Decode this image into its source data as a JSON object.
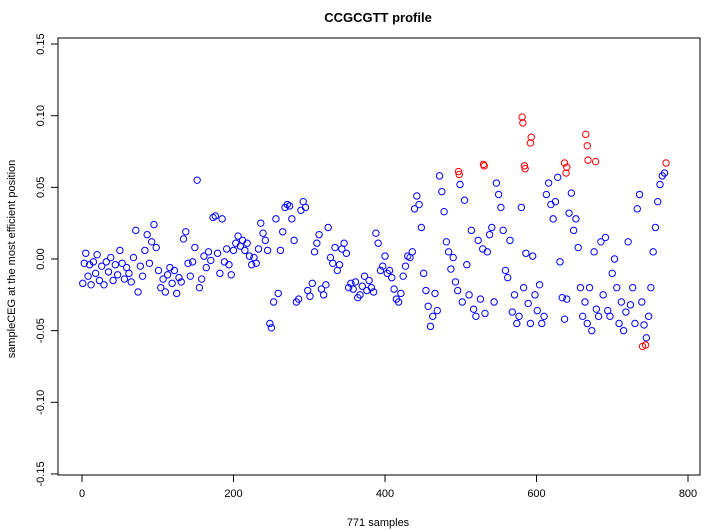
{
  "chart_data": {
    "type": "scatter",
    "title": "CCGCGTT profile",
    "xlabel": "771 samples",
    "ylabel": "sampleCEG at the most efficient position",
    "xlim": [
      -10,
      800
    ],
    "ylim": [
      -0.15,
      0.15
    ],
    "xticks": [
      0,
      200,
      400,
      600,
      800
    ],
    "yticks": [
      -0.15,
      -0.1,
      -0.05,
      0.0,
      0.05,
      0.1,
      0.15
    ],
    "ytick_labels": [
      "-0.15",
      "-0.10",
      "-0.05",
      "0.00",
      "0.05",
      "0.10",
      "0.15"
    ],
    "grid": false,
    "series": [
      {
        "name": "normal",
        "color": "#0000ff",
        "points": [
          [
            1,
            -0.017
          ],
          [
            3,
            -0.003
          ],
          [
            5,
            0.004
          ],
          [
            8,
            -0.012
          ],
          [
            10,
            -0.004
          ],
          [
            12,
            -0.018
          ],
          [
            15,
            -0.002
          ],
          [
            18,
            -0.01
          ],
          [
            20,
            0.003
          ],
          [
            23,
            -0.015
          ],
          [
            26,
            -0.005
          ],
          [
            29,
            -0.018
          ],
          [
            32,
            -0.002
          ],
          [
            35,
            -0.009
          ],
          [
            38,
            0.001
          ],
          [
            41,
            -0.015
          ],
          [
            44,
            -0.004
          ],
          [
            47,
            -0.011
          ],
          [
            50,
            0.006
          ],
          [
            53,
            -0.003
          ],
          [
            56,
            -0.014
          ],
          [
            59,
            -0.006
          ],
          [
            62,
            -0.01
          ],
          [
            65,
            -0.016
          ],
          [
            68,
            0.001
          ],
          [
            71,
            0.02
          ],
          [
            74,
            -0.023
          ],
          [
            77,
            -0.005
          ],
          [
            80,
            -0.012
          ],
          [
            83,
            0.006
          ],
          [
            86,
            0.017
          ],
          [
            89,
            -0.003
          ],
          [
            92,
            0.012
          ],
          [
            95,
            0.024
          ],
          [
            98,
            0.008
          ],
          [
            101,
            -0.008
          ],
          [
            104,
            -0.02
          ],
          [
            107,
            -0.014
          ],
          [
            110,
            -0.023
          ],
          [
            113,
            -0.011
          ],
          [
            116,
            -0.006
          ],
          [
            119,
            -0.017
          ],
          [
            122,
            -0.008
          ],
          [
            125,
            -0.024
          ],
          [
            128,
            -0.013
          ],
          [
            131,
            -0.016
          ],
          [
            134,
            0.014
          ],
          [
            137,
            0.019
          ],
          [
            140,
            -0.003
          ],
          [
            143,
            -0.012
          ],
          [
            146,
            -0.002
          ],
          [
            149,
            0.008
          ],
          [
            152,
            0.055
          ],
          [
            155,
            -0.02
          ],
          [
            158,
            -0.014
          ],
          [
            161,
            0.002
          ],
          [
            164,
            -0.006
          ],
          [
            167,
            0.005
          ],
          [
            170,
            -0.001
          ],
          [
            173,
            0.029
          ],
          [
            176,
            0.03
          ],
          [
            179,
            0.004
          ],
          [
            182,
            -0.01
          ],
          [
            185,
            0.028
          ],
          [
            188,
            -0.002
          ],
          [
            191,
            0.007
          ],
          [
            194,
            -0.004
          ],
          [
            197,
            -0.011
          ],
          [
            200,
            0.006
          ],
          [
            203,
            0.011
          ],
          [
            206,
            0.016
          ],
          [
            209,
            0.009
          ],
          [
            212,
            0.013
          ],
          [
            215,
            0.006
          ],
          [
            218,
            0.011
          ],
          [
            221,
            0.002
          ],
          [
            224,
            -0.004
          ],
          [
            227,
            0.001
          ],
          [
            230,
            -0.003
          ],
          [
            233,
            0.007
          ],
          [
            236,
            0.025
          ],
          [
            239,
            0.018
          ],
          [
            242,
            0.013
          ],
          [
            245,
            0.006
          ],
          [
            248,
            -0.045
          ],
          [
            250,
            -0.048
          ],
          [
            253,
            -0.03
          ],
          [
            256,
            0.028
          ],
          [
            259,
            -0.024
          ],
          [
            262,
            0.006
          ],
          [
            265,
            0.019
          ],
          [
            268,
            0.036
          ],
          [
            271,
            0.038
          ],
          [
            274,
            0.037
          ],
          [
            277,
            0.028
          ],
          [
            280,
            0.013
          ],
          [
            283,
            -0.03
          ],
          [
            286,
            -0.028
          ],
          [
            289,
            0.034
          ],
          [
            292,
            0.04
          ],
          [
            295,
            0.036
          ],
          [
            298,
            -0.022
          ],
          [
            301,
            -0.026
          ],
          [
            304,
            -0.017
          ],
          [
            307,
            0.005
          ],
          [
            310,
            0.011
          ],
          [
            313,
            0.017
          ],
          [
            316,
            -0.021
          ],
          [
            319,
            -0.025
          ],
          [
            322,
            -0.018
          ],
          [
            325,
            0.022
          ],
          [
            328,
            0.001
          ],
          [
            331,
            -0.003
          ],
          [
            334,
            0.008
          ],
          [
            337,
            -0.008
          ],
          [
            340,
            -0.004
          ],
          [
            343,
            0.007
          ],
          [
            346,
            0.011
          ],
          [
            349,
            0.004
          ],
          [
            352,
            -0.02
          ],
          [
            355,
            -0.017
          ],
          [
            358,
            -0.021
          ],
          [
            361,
            -0.016
          ],
          [
            364,
            -0.027
          ],
          [
            367,
            -0.025
          ],
          [
            370,
            -0.019
          ],
          [
            373,
            -0.012
          ],
          [
            376,
            -0.022
          ],
          [
            379,
            -0.015
          ],
          [
            382,
            -0.02
          ],
          [
            385,
            -0.023
          ],
          [
            388,
            0.018
          ],
          [
            391,
            0.011
          ],
          [
            394,
            -0.008
          ],
          [
            397,
            -0.005
          ],
          [
            400,
            0.002
          ],
          [
            403,
            -0.01
          ],
          [
            406,
            -0.008
          ],
          [
            409,
            -0.013
          ],
          [
            412,
            -0.021
          ],
          [
            415,
            -0.028
          ],
          [
            418,
            -0.03
          ],
          [
            421,
            -0.024
          ],
          [
            424,
            -0.012
          ],
          [
            427,
            -0.005
          ],
          [
            430,
            0.002
          ],
          [
            433,
            0.001
          ],
          [
            436,
            0.005
          ],
          [
            439,
            0.035
          ],
          [
            442,
            0.044
          ],
          [
            445,
            0.038
          ],
          [
            448,
            0.022
          ],
          [
            451,
            -0.01
          ],
          [
            454,
            -0.022
          ],
          [
            457,
            -0.033
          ],
          [
            460,
            -0.047
          ],
          [
            463,
            -0.04
          ],
          [
            466,
            -0.024
          ],
          [
            469,
            -0.036
          ],
          [
            472,
            0.058
          ],
          [
            475,
            0.047
          ],
          [
            478,
            0.033
          ],
          [
            481,
            0.012
          ],
          [
            484,
            0.005
          ],
          [
            487,
            -0.007
          ],
          [
            490,
            0.001
          ],
          [
            493,
            -0.016
          ],
          [
            496,
            -0.022
          ],
          [
            499,
            0.052
          ],
          [
            502,
            -0.03
          ],
          [
            505,
            0.041
          ],
          [
            508,
            -0.004
          ],
          [
            511,
            -0.025
          ],
          [
            514,
            0.02
          ],
          [
            517,
            -0.035
          ],
          [
            520,
            -0.04
          ],
          [
            523,
            0.013
          ],
          [
            526,
            -0.028
          ],
          [
            529,
            0.007
          ],
          [
            532,
            -0.038
          ],
          [
            535,
            0.005
          ],
          [
            538,
            0.017
          ],
          [
            541,
            0.022
          ],
          [
            544,
            -0.03
          ],
          [
            547,
            0.053
          ],
          [
            550,
            0.045
          ],
          [
            553,
            0.036
          ],
          [
            556,
            0.02
          ],
          [
            559,
            -0.008
          ],
          [
            562,
            -0.013
          ],
          [
            565,
            0.013
          ],
          [
            568,
            -0.037
          ],
          [
            571,
            -0.025
          ],
          [
            574,
            -0.045
          ],
          [
            577,
            -0.04
          ],
          [
            580,
            0.036
          ],
          [
            583,
            -0.02
          ],
          [
            586,
            0.004
          ],
          [
            589,
            -0.031
          ],
          [
            592,
            -0.045
          ],
          [
            595,
            0.002
          ],
          [
            598,
            -0.025
          ],
          [
            601,
            -0.036
          ],
          [
            604,
            -0.018
          ],
          [
            607,
            -0.045
          ],
          [
            610,
            -0.04
          ],
          [
            613,
            0.045
          ],
          [
            616,
            0.053
          ],
          [
            619,
            0.038
          ],
          [
            622,
            0.028
          ],
          [
            625,
            0.04
          ],
          [
            628,
            0.057
          ],
          [
            631,
            -0.002
          ],
          [
            634,
            -0.027
          ],
          [
            637,
            -0.042
          ],
          [
            640,
            -0.028
          ],
          [
            643,
            0.032
          ],
          [
            646,
            0.046
          ],
          [
            649,
            0.02
          ],
          [
            652,
            0.028
          ],
          [
            655,
            0.008
          ],
          [
            658,
            -0.02
          ],
          [
            661,
            -0.04
          ],
          [
            664,
            -0.03
          ],
          [
            667,
            -0.045
          ],
          [
            670,
            -0.02
          ],
          [
            673,
            -0.05
          ],
          [
            676,
            0.005
          ],
          [
            679,
            -0.035
          ],
          [
            682,
            -0.04
          ],
          [
            685,
            0.012
          ],
          [
            688,
            -0.025
          ],
          [
            691,
            0.015
          ],
          [
            694,
            -0.036
          ],
          [
            697,
            -0.04
          ],
          [
            700,
            -0.01
          ],
          [
            703,
            0.0
          ],
          [
            706,
            -0.02
          ],
          [
            709,
            -0.045
          ],
          [
            712,
            -0.03
          ],
          [
            715,
            -0.05
          ],
          [
            718,
            -0.037
          ],
          [
            721,
            0.012
          ],
          [
            724,
            -0.032
          ],
          [
            727,
            -0.02
          ],
          [
            730,
            -0.045
          ],
          [
            733,
            0.035
          ],
          [
            736,
            0.045
          ],
          [
            739,
            -0.03
          ],
          [
            742,
            -0.046
          ],
          [
            745,
            -0.055
          ],
          [
            748,
            -0.04
          ],
          [
            751,
            -0.02
          ],
          [
            754,
            0.005
          ],
          [
            757,
            0.022
          ],
          [
            760,
            0.04
          ],
          [
            763,
            0.052
          ],
          [
            766,
            0.058
          ],
          [
            769,
            0.06
          ]
        ]
      },
      {
        "name": "extreme",
        "color": "#ff0000",
        "points": [
          [
            497,
            0.061
          ],
          [
            498,
            0.059
          ],
          [
            530,
            0.066
          ],
          [
            531,
            0.065
          ],
          [
            581,
            0.099
          ],
          [
            582,
            0.095
          ],
          [
            584,
            0.065
          ],
          [
            585,
            0.063
          ],
          [
            593,
            0.085
          ],
          [
            592,
            0.081
          ],
          [
            637,
            0.067
          ],
          [
            640,
            0.064
          ],
          [
            639,
            0.06
          ],
          [
            665,
            0.087
          ],
          [
            667,
            0.079
          ],
          [
            668,
            0.069
          ],
          [
            678,
            0.068
          ],
          [
            771,
            0.067
          ],
          [
            740,
            -0.061
          ],
          [
            744,
            -0.06
          ]
        ]
      }
    ]
  }
}
